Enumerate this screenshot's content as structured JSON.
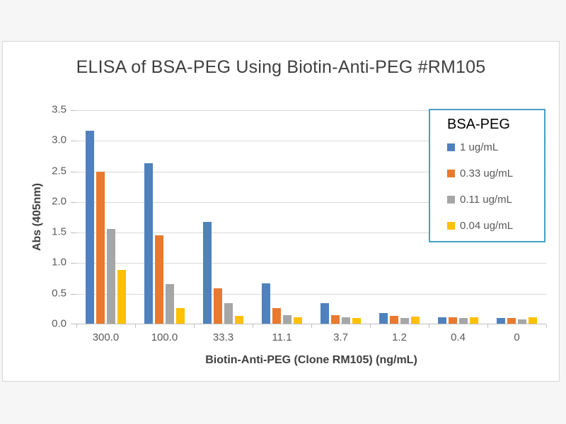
{
  "chart_data": {
    "type": "bar",
    "title": "ELISA of BSA-PEG Using Biotin-Anti-PEG #RM105",
    "xlabel": "Biotin-Anti-PEG (Clone RM105) (ng/mL)",
    "ylabel": "Abs (405nm)",
    "ylim": [
      0,
      3.5
    ],
    "yticks": [
      "0.0",
      "0.5",
      "1.0",
      "1.5",
      "2.0",
      "2.5",
      "3.0",
      "3.5"
    ],
    "grid": true,
    "gridline_color": "#d9d9d9",
    "axis_color": "#bfbfbf",
    "categories": [
      "300.0",
      "100.0",
      "33.3",
      "11.1",
      "3.7",
      "1.2",
      "0.4",
      "0"
    ],
    "series": [
      {
        "name": "1 ug/mL",
        "color": "#4f81bd",
        "values": [
          3.15,
          2.62,
          1.66,
          0.66,
          0.33,
          0.17,
          0.11,
          0.09
        ]
      },
      {
        "name": "0.33 ug/mL",
        "color": "#e9792e",
        "values": [
          2.48,
          1.45,
          0.58,
          0.26,
          0.14,
          0.13,
          0.1,
          0.09
        ]
      },
      {
        "name": "0.11 ug/mL",
        "color": "#a6a6a6",
        "values": [
          1.55,
          0.65,
          0.33,
          0.14,
          0.11,
          0.09,
          0.09,
          0.07
        ]
      },
      {
        "name": "0.04 ug/mL",
        "color": "#ffc000",
        "values": [
          0.88,
          0.26,
          0.13,
          0.1,
          0.09,
          0.12,
          0.1,
          0.1
        ]
      }
    ],
    "legend": {
      "title": "BSA-PEG",
      "position": "top-right-inside",
      "border_color": "#46a0c8"
    }
  }
}
